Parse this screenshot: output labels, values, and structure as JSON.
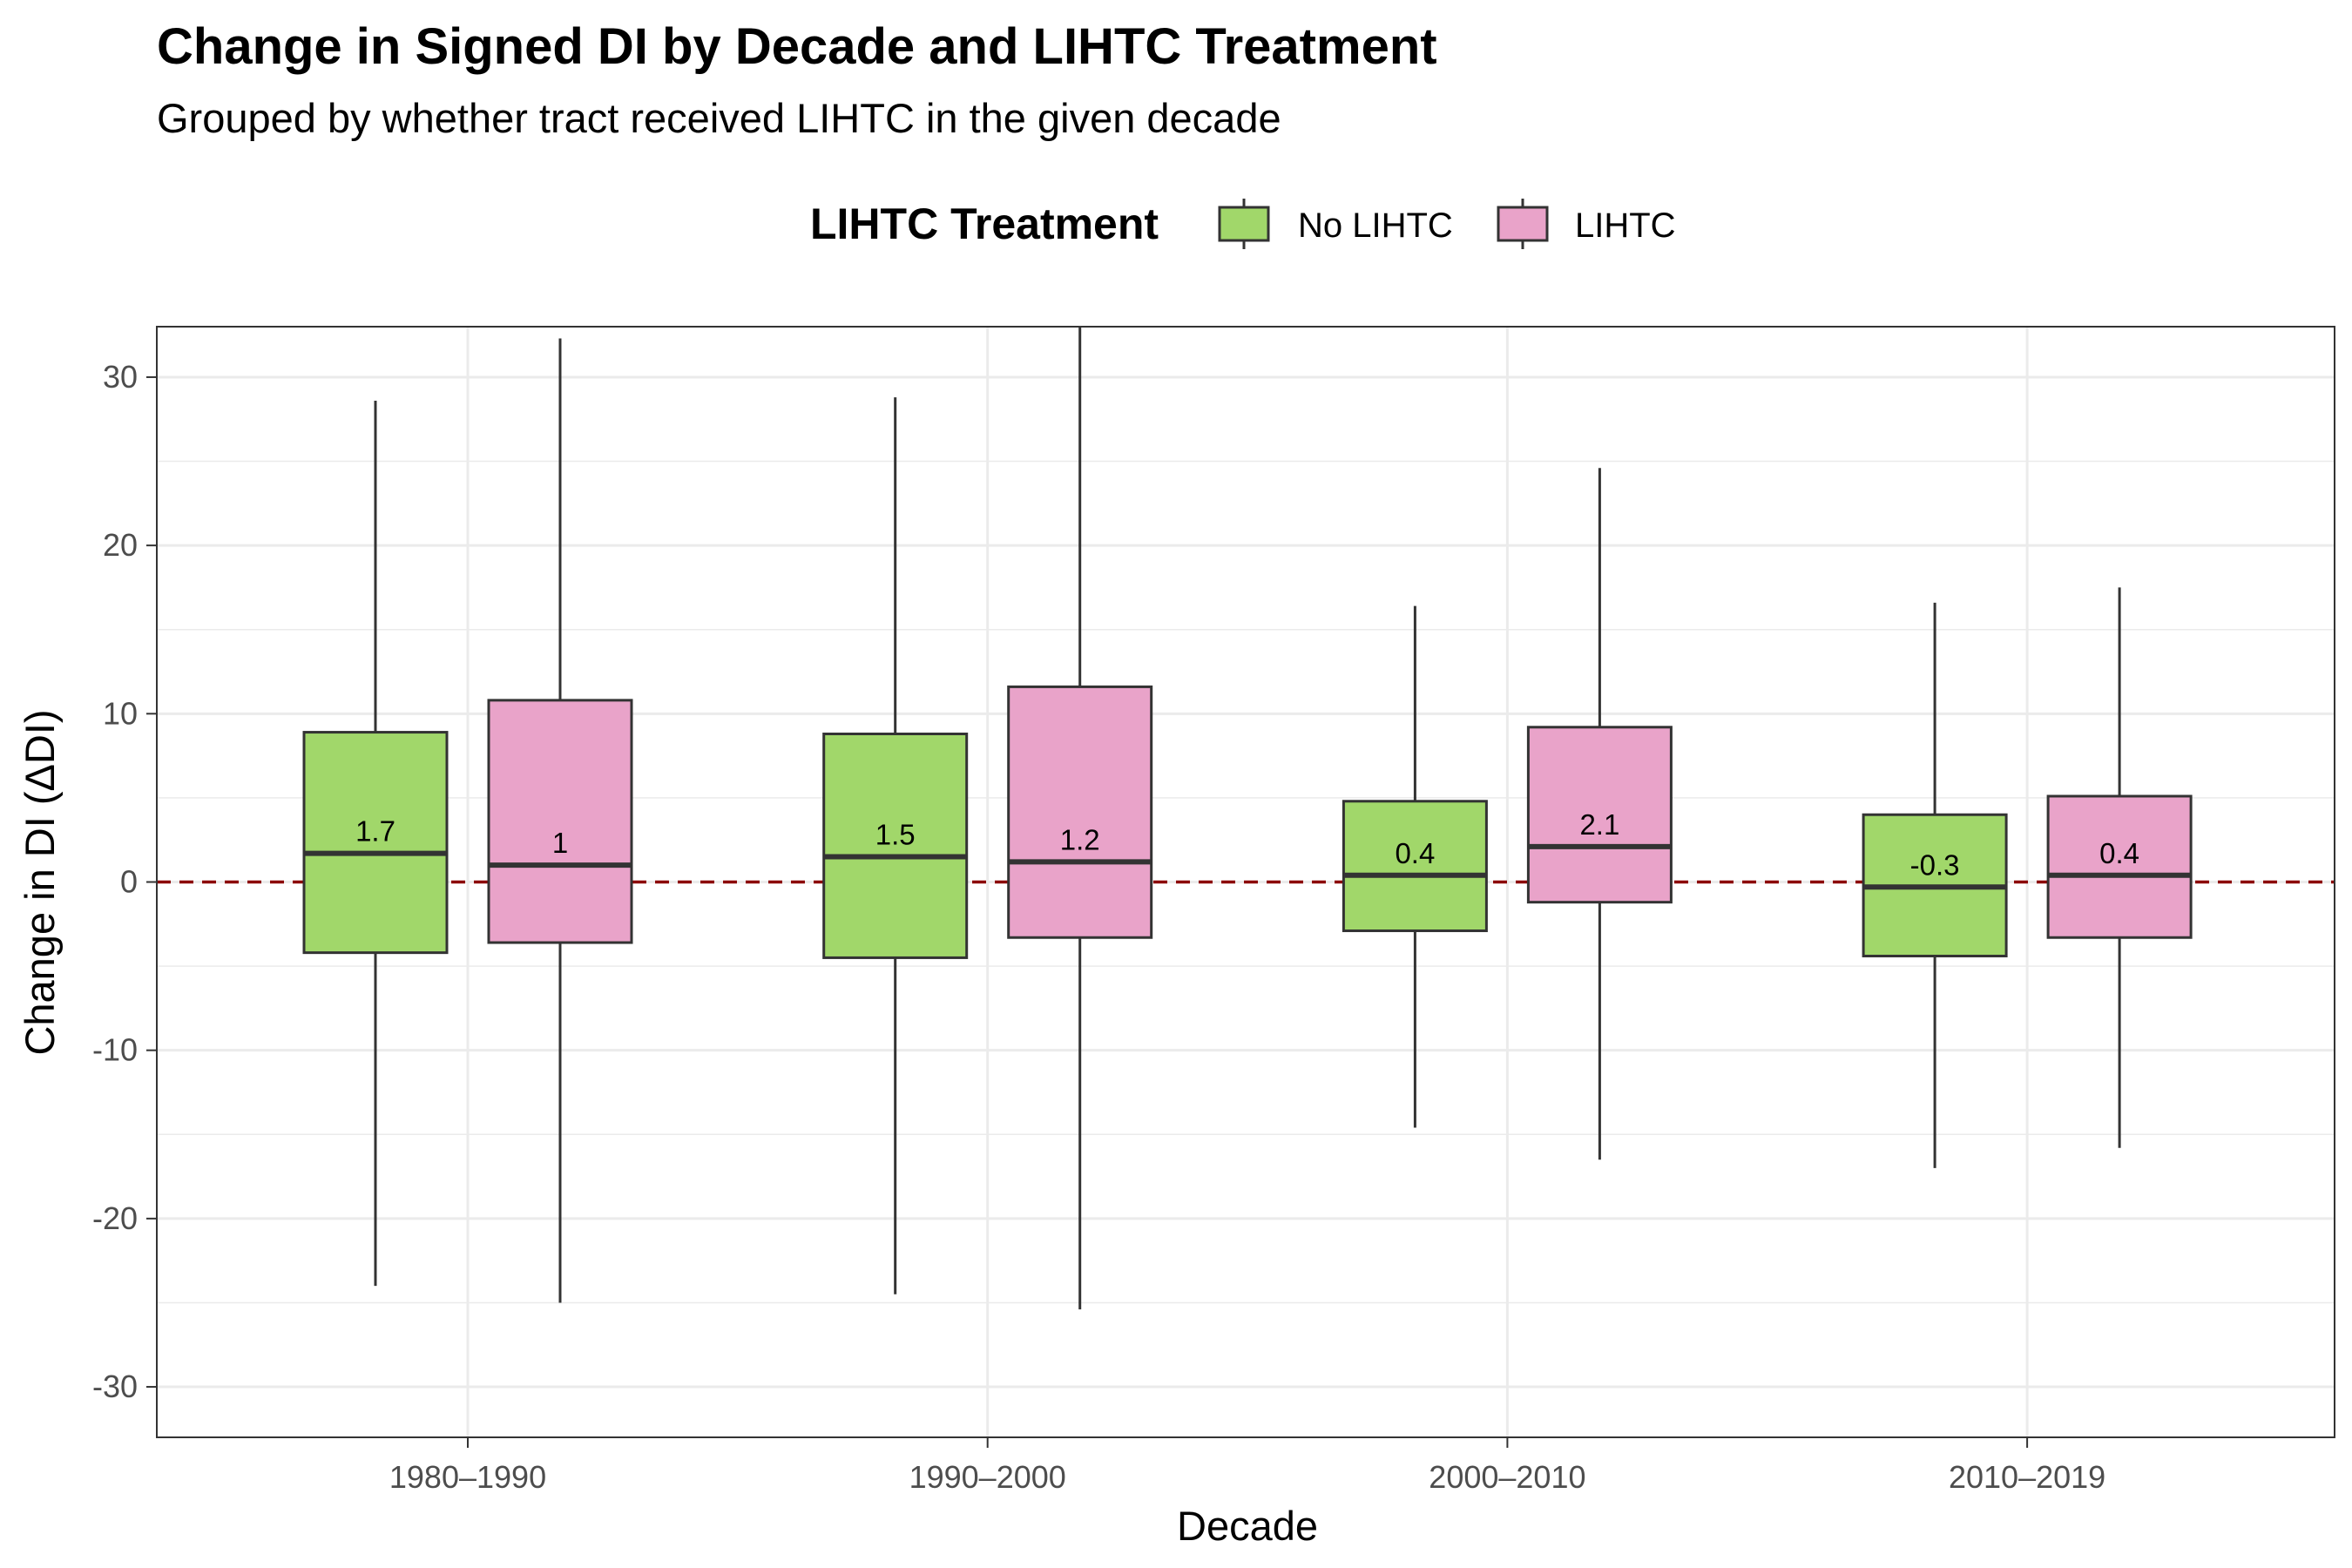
{
  "title": "Change in Signed DI by Decade and LIHTC Treatment",
  "subtitle": "Grouped by whether tract received LIHTC in the given decade",
  "legend": {
    "title": "LIHTC Treatment",
    "items": [
      {
        "label": "No LIHTC",
        "color": "#a1d76a"
      },
      {
        "label": "LIHTC",
        "color": "#e9a3c9"
      }
    ]
  },
  "chart_data": {
    "type": "boxplot",
    "xlabel": "Decade",
    "ylabel": "Change in DI (ΔDI)",
    "ylim": [
      -33,
      33
    ],
    "yticks": [
      -30,
      -20,
      -10,
      0,
      10,
      20,
      30
    ],
    "categories": [
      "1980–1990",
      "1990–2000",
      "2000–2010",
      "2010–2019"
    ],
    "reference_line": {
      "y": 0,
      "style": "dashed",
      "color": "#8b0000"
    },
    "grid": true,
    "legend_position": "top",
    "series": [
      {
        "name": "No LIHTC",
        "color": "#a1d76a",
        "boxes": [
          {
            "whisker_low": -24.0,
            "q1": -4.2,
            "median": 1.7,
            "q3": 8.9,
            "whisker_high": 28.6,
            "label": "1.7"
          },
          {
            "whisker_low": -24.5,
            "q1": -4.5,
            "median": 1.5,
            "q3": 8.8,
            "whisker_high": 28.8,
            "label": "1.5"
          },
          {
            "whisker_low": -14.6,
            "q1": -2.9,
            "median": 0.4,
            "q3": 4.8,
            "whisker_high": 16.4,
            "label": "0.4"
          },
          {
            "whisker_low": -17.0,
            "q1": -4.4,
            "median": -0.3,
            "q3": 4.0,
            "whisker_high": 16.6,
            "label": "-0.3"
          }
        ]
      },
      {
        "name": "LIHTC",
        "color": "#e9a3c9",
        "boxes": [
          {
            "whisker_low": -25.0,
            "q1": -3.6,
            "median": 1.0,
            "q3": 10.8,
            "whisker_high": 32.3,
            "label": "1"
          },
          {
            "whisker_low": -25.4,
            "q1": -3.3,
            "median": 1.2,
            "q3": 11.6,
            "whisker_high": 33.0,
            "label": "1.2"
          },
          {
            "whisker_low": -16.5,
            "q1": -1.2,
            "median": 2.1,
            "q3": 9.2,
            "whisker_high": 24.6,
            "label": "2.1"
          },
          {
            "whisker_low": -15.8,
            "q1": -3.3,
            "median": 0.4,
            "q3": 5.1,
            "whisker_high": 17.5,
            "label": "0.4"
          }
        ]
      }
    ]
  }
}
